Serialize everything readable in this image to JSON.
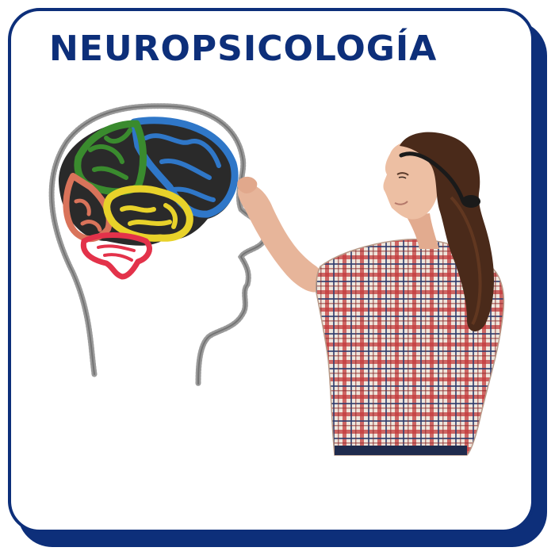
{
  "card": {
    "title": "NEUROPSICOLOGÍA",
    "border_color": "#0d2f7a",
    "title_color": "#0d2f7a"
  },
  "illustration": {
    "head_outline_color": "#9a9a9a",
    "brain_lobes": [
      {
        "name": "frontal-lobe",
        "color": "#2f77c8"
      },
      {
        "name": "parietal-lobe",
        "color": "#3a8b2e"
      },
      {
        "name": "occipital-lobe",
        "color": "#d9735a"
      },
      {
        "name": "temporal-lobe",
        "color": "#e8d22a"
      },
      {
        "name": "cerebellum",
        "color": "#e3324a"
      }
    ],
    "shirt_color": "#d7c6b8",
    "hair_color": "#4a2a1a"
  }
}
